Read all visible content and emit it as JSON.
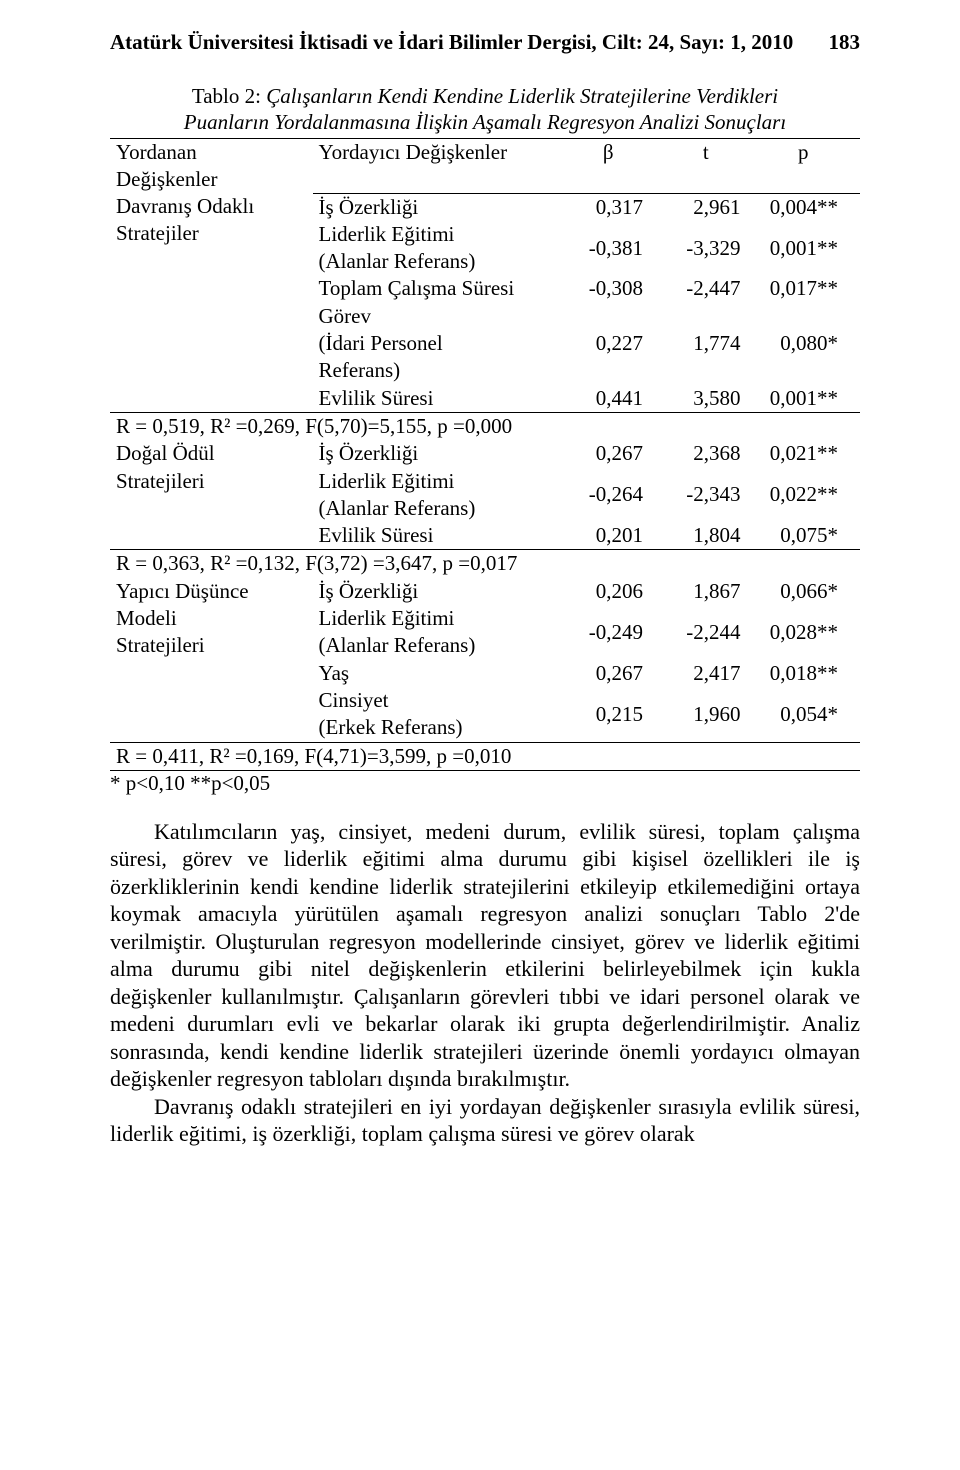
{
  "page": {
    "running_head": "Atatürk Üniversitesi İktisadi ve İdari Bilimler Dergisi, Cilt: 24,  Sayı: 1,  2010",
    "page_number": "183"
  },
  "table": {
    "caption_lead": "Tablo 2: ",
    "caption_rest_line1": "Çalışanların Kendi Kendine Liderlik Stratejilerine Verdikleri",
    "caption_rest_line2": "Puanların Yordalanmasına İlişkin Aşamalı Regresyon Analizi Sonuçları",
    "header": {
      "dep_line1": "Yordanan",
      "dep_line2": "Değişkenler",
      "pred": "Yordayıcı Değişkenler",
      "beta": "β",
      "t": "t",
      "p": "p"
    },
    "block1": {
      "dep_line1": "Davranış Odaklı",
      "dep_line2": "Stratejiler",
      "rows": [
        {
          "pred": "İş Özerkliği",
          "b": "0,317",
          "t": "2,961",
          "p": "0,004**"
        },
        {
          "pred": "Liderlik Eğitimi\n(Alanlar Referans)",
          "b": "-0,381",
          "t": "-3,329",
          "p": "0,001**"
        },
        {
          "pred": "Toplam Çalışma Süresi",
          "b": "-0,308",
          "t": "-2,447",
          "p": "0,017**"
        },
        {
          "pred": "Görev\n(İdari Personel\nReferans)",
          "b": "0,227",
          "t": "1,774",
          "p": "0,080*"
        },
        {
          "pred": "Evlilik Süresi",
          "b": "0,441",
          "t": "3,580",
          "p": "0,001**"
        }
      ],
      "stats": "R = 0,519,  R² =0,269,  F(5,70)=5,155,  p =0,000"
    },
    "block2": {
      "dep": "Doğal Ödül Stratejileri",
      "rows": [
        {
          "pred": "İş Özerkliği",
          "b": "0,267",
          "t": "2,368",
          "p": "0,021**"
        },
        {
          "pred": "Liderlik Eğitimi\n(Alanlar Referans)",
          "b": "-0,264",
          "t": "-2,343",
          "p": "0,022**"
        },
        {
          "pred": "Evlilik Süresi",
          "b": "0,201",
          "t": "1,804",
          "p": "0,075*"
        }
      ],
      "stats": "R = 0,363,  R² =0,132,  F(3,72) =3,647,  p =0,017"
    },
    "block3": {
      "dep_line1": "Yapıcı Düşünce Modeli",
      "dep_line2": "Stratejileri",
      "rows": [
        {
          "pred": "İş Özerkliği",
          "b": "0,206",
          "t": "1,867",
          "p": "0,066*"
        },
        {
          "pred": "Liderlik Eğitimi\n(Alanlar Referans)",
          "b": "-0,249",
          "t": "-2,244",
          "p": "0,028**"
        },
        {
          "pred": "Yaş",
          "b": "0,267",
          "t": "2,417",
          "p": "0,018**"
        },
        {
          "pred": "Cinsiyet\n(Erkek Referans)",
          "b": "0,215",
          "t": "1,960",
          "p": "0,054*"
        }
      ],
      "stats": "R = 0,411,  R² =0,169,  F(4,71)=3,599,  p =0,010"
    },
    "footnote": "* p<0,10 **p<0,05"
  },
  "body": {
    "p1": "Katılımcıların yaş, cinsiyet, medeni durum, evlilik süresi, toplam çalışma süresi, görev ve liderlik eğitimi alma durumu gibi kişisel özellikleri ile iş özerkliklerinin kendi kendine liderlik stratejilerini etkileyip etkilemediğini ortaya koymak amacıyla yürütülen aşamalı regresyon analizi sonuçları Tablo 2'de verilmiştir. Oluşturulan regresyon modellerinde cinsiyet, görev ve liderlik eğitimi alma durumu gibi nitel değişkenlerin etkilerini belirleyebilmek için kukla değişkenler kullanılmıştır. Çalışanların görevleri tıbbi ve idari personel olarak ve medeni durumları evli ve bekarlar olarak iki grupta değerlendirilmiştir. Analiz sonrasında, kendi kendine liderlik stratejileri üzerinde önemli yordayıcı olmayan değişkenler regresyon tabloları dışında bırakılmıştır.",
    "p2": "Davranış odaklı stratejileri en iyi yordayan değişkenler sırasıyla evlilik süresi, liderlik eğitimi, iş özerkliği, toplam çalışma süresi ve görev olarak"
  }
}
